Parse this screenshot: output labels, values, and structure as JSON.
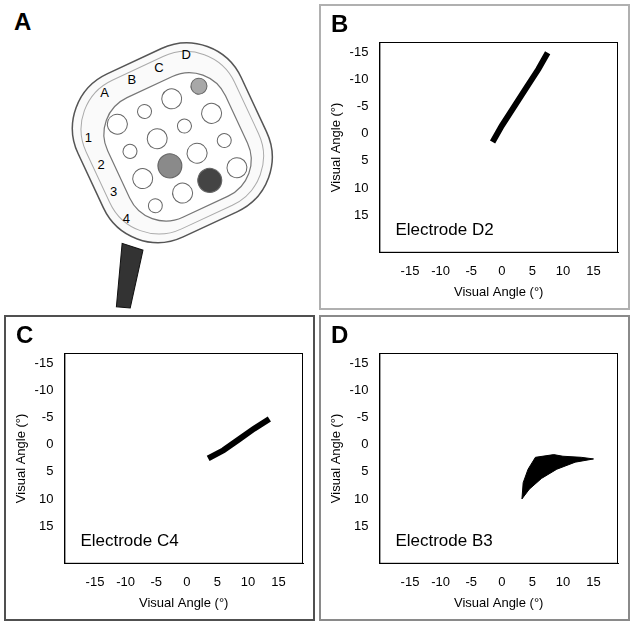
{
  "diagram": {
    "label": "A",
    "columns": [
      "A",
      "B",
      "C",
      "D"
    ],
    "rows": [
      "1",
      "2",
      "3",
      "4"
    ]
  },
  "chart_data": [
    {
      "label": "B",
      "type": "line",
      "annotation": "Electrode D2",
      "x_label": "Visual Angle (°)",
      "y_label": "Visual Angle (°)",
      "x": [
        -1.5,
        0,
        2,
        4,
        6,
        7.5
      ],
      "values": [
        1.5,
        -1.5,
        -5,
        -8.5,
        -12,
        -15
      ],
      "color": "#000000",
      "xlim": [
        -20,
        19
      ],
      "ylim": [
        22,
        -17
      ],
      "xticks": [
        -15,
        -10,
        -5,
        0,
        5,
        10,
        15
      ],
      "yticks": [
        -15,
        -10,
        -5,
        0,
        5,
        10,
        15
      ]
    },
    {
      "label": "C",
      "type": "line",
      "annotation": "Electrode C4",
      "x_label": "Visual Angle (°)",
      "y_label": "Visual Angle (°)",
      "x": [
        3.5,
        6,
        8.5,
        11,
        13.5
      ],
      "values": [
        2.5,
        1,
        -1,
        -3,
        -4.8
      ],
      "color": "#000000",
      "xlim": [
        -20,
        19
      ],
      "ylim": [
        22,
        -17
      ],
      "xticks": [
        -15,
        -10,
        -5,
        0,
        5,
        10,
        15
      ],
      "yticks": [
        -15,
        -10,
        -5,
        0,
        5,
        10,
        15
      ]
    },
    {
      "label": "D",
      "type": "area",
      "annotation": "Electrode B3",
      "x_label": "Visual Angle (°)",
      "y_label": "Visual Angle (°)",
      "x": [
        5.5,
        8.5,
        10,
        13,
        15,
        12,
        9,
        6.5,
        4.5,
        3.3,
        3.5,
        4.3,
        5.5
      ],
      "values": [
        2.3,
        1.8,
        2.1,
        2.3,
        2.6,
        3.2,
        4.5,
        6.2,
        8.2,
        10,
        7,
        4.5,
        2.3
      ],
      "color": "#000000",
      "xlim": [
        -20,
        19
      ],
      "ylim": [
        22,
        -17
      ],
      "xticks": [
        -15,
        -10,
        -5,
        0,
        5,
        10,
        15
      ],
      "yticks": [
        -15,
        -10,
        -5,
        0,
        5,
        10,
        15
      ]
    }
  ]
}
